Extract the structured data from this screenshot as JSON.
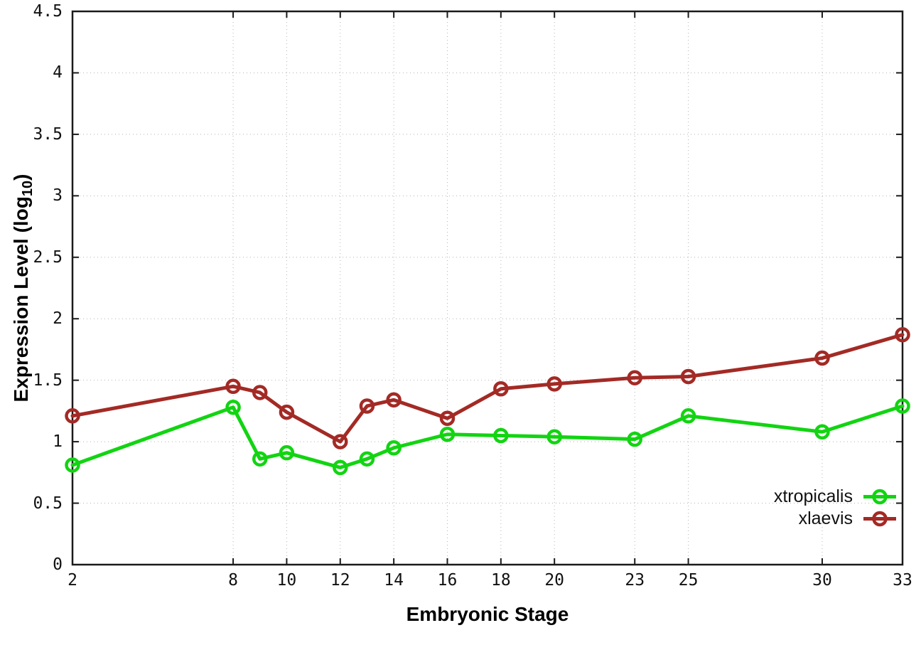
{
  "chart_data": {
    "type": "line",
    "title": "",
    "xlabel": "Embryonic Stage",
    "ylabel": "Expression Level (log10)",
    "ylabel_prefix": "Expression Level (log",
    "ylabel_sub": "10",
    "ylabel_suffix": ")",
    "x": [
      2,
      8,
      9,
      10,
      12,
      13,
      14,
      16,
      18,
      20,
      23,
      25,
      30,
      33
    ],
    "series": [
      {
        "name": "xtropicalis",
        "color": "#12d412",
        "values": [
          0.81,
          1.28,
          0.86,
          0.91,
          0.79,
          0.86,
          0.95,
          1.06,
          1.05,
          1.04,
          1.02,
          1.21,
          1.08,
          1.29
        ]
      },
      {
        "name": "xlaevis",
        "color": "#a32a25",
        "values": [
          1.21,
          1.45,
          1.4,
          1.24,
          1.0,
          1.29,
          1.34,
          1.19,
          1.43,
          1.47,
          1.52,
          1.53,
          1.68,
          1.87
        ]
      }
    ],
    "xlim": [
      2,
      33
    ],
    "ylim": [
      0,
      4.5
    ],
    "xticks": [
      2,
      8,
      10,
      12,
      14,
      16,
      18,
      20,
      23,
      25,
      30,
      33
    ],
    "yticks": [
      0,
      0.5,
      1,
      1.5,
      2,
      2.5,
      3,
      3.5,
      4,
      4.5
    ],
    "ytick_labels": [
      "0",
      "0.5",
      "1",
      "1.5",
      "2",
      "2.5",
      "3",
      "3.5",
      "4",
      "4.5"
    ],
    "grid": true,
    "marker": "open-circle",
    "legend_position": "bottom-right",
    "colors": {
      "background": "#ffffff",
      "border": "#1a1a1a",
      "grid": "#b4b4b4",
      "text": "#111111"
    }
  }
}
